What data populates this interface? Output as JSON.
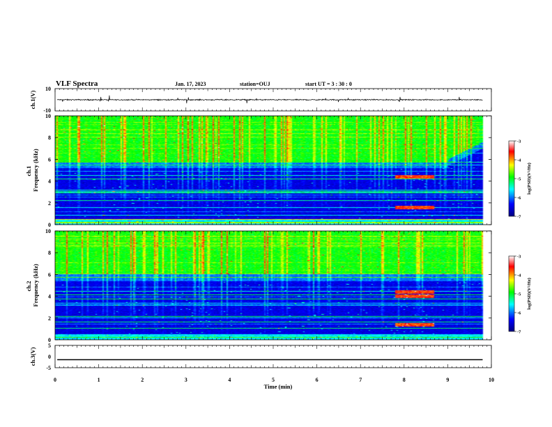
{
  "header": {
    "title": "VLF Spectra",
    "date": "Jan. 17, 2023",
    "station": "station=OUJ",
    "start": "start UT = 3 : 30 : 0"
  },
  "colors": {
    "background": "#ffffff",
    "waveform": "#000000",
    "colormap": [
      "#000080",
      "#0000ff",
      "#00ffff",
      "#00ff00",
      "#ffff00",
      "#ff0000",
      "#ffffff"
    ]
  },
  "chart_data": [
    {
      "type": "line",
      "id": "ch1-waveform",
      "ylabel": "ch.1(V)",
      "ylim": [
        -10,
        10
      ],
      "yticks": [
        "10",
        "-10"
      ],
      "xlim": [
        0,
        10
      ],
      "series": [
        {
          "baseline": 0,
          "noise_amplitude": 0.6
        }
      ]
    },
    {
      "type": "heatmap",
      "id": "ch1-spectrogram",
      "ylabel": "ch.1\nFrequency (kHz)",
      "ylim": [
        0,
        10
      ],
      "yticks": [
        "0",
        "2",
        "4",
        "6",
        "8",
        "10"
      ],
      "xlim": [
        0,
        10
      ],
      "data_end_min": 9.8,
      "colorbar": {
        "label": "log(PSD)(V²/Hz)",
        "range": [
          -7,
          -3
        ],
        "ticks": [
          "-3",
          "-4",
          "-5",
          "-6",
          "-7"
        ]
      },
      "features": {
        "band_edge_khz": 5.8,
        "band_edge_after_9min_khz": 6.0,
        "signal_patch": {
          "x_start_min": 7.8,
          "x_end_min": 8.7,
          "freqs_khz": [
            4.4,
            1.55
          ]
        }
      }
    },
    {
      "type": "heatmap",
      "id": "ch2-spectrogram",
      "ylabel": "ch.2\nFrequency (kHz)",
      "ylim": [
        0,
        10
      ],
      "yticks": [
        "0",
        "2",
        "4",
        "6",
        "8",
        "10"
      ],
      "xlim": [
        0,
        10
      ],
      "data_end_min": 9.8,
      "colorbar": {
        "label": "log(PSD)(V²/Hz)",
        "range": [
          -7,
          -3
        ],
        "ticks": [
          "-3",
          "-4",
          "-5",
          "-6",
          "-7"
        ]
      },
      "features": {
        "band_edge_khz": 6.0,
        "signal_patch": {
          "x_start_min": 7.8,
          "x_end_min": 8.7,
          "freqs_khz": [
            4.4,
            4.0,
            1.4
          ]
        }
      }
    },
    {
      "type": "line",
      "id": "ch3-waveform",
      "ylabel": "ch.3(V)",
      "ylim": [
        -5,
        5
      ],
      "yticks": [
        "5",
        "0",
        "-5"
      ],
      "xlim": [
        0,
        10
      ],
      "xlabel": "Time (min)",
      "xticks": [
        "0",
        "1",
        "2",
        "3",
        "4",
        "5",
        "6",
        "7",
        "8",
        "9",
        "10"
      ],
      "series": [
        {
          "baseline": -1.4,
          "thickness_v": 0.45
        }
      ]
    }
  ]
}
